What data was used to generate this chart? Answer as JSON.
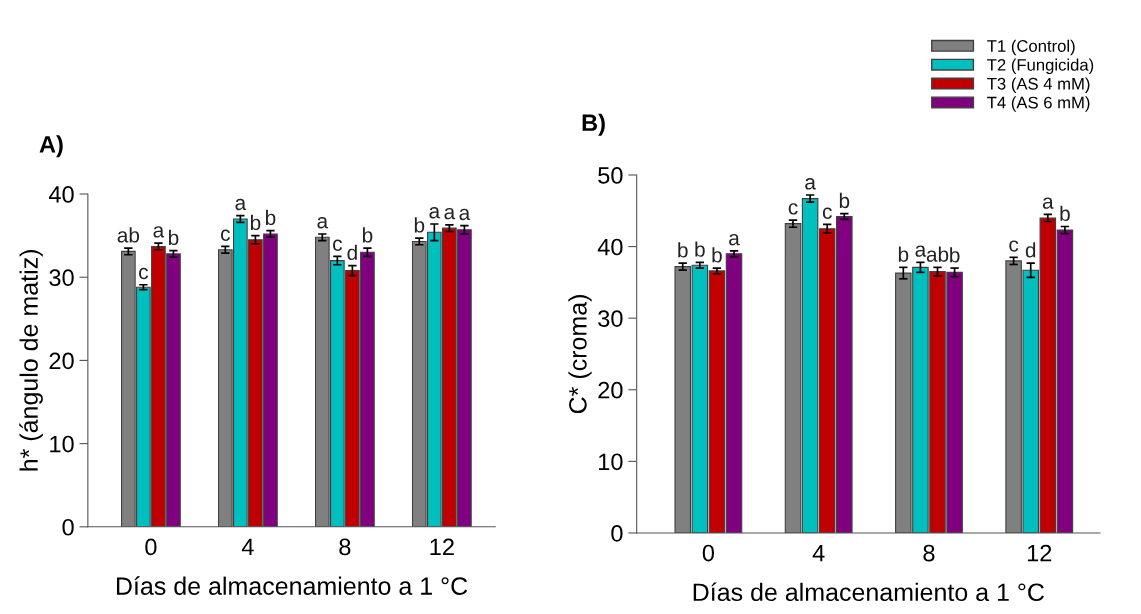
{
  "chart_data": [
    {
      "type": "bar",
      "title": "A)",
      "xlabel": "Días de almacenamiento a 1 °C",
      "ylabel": "h* (ángulo de matiz)",
      "categories": [
        "0",
        "4",
        "8",
        "12"
      ],
      "ylim": [
        0,
        40
      ],
      "yticks": [
        0,
        10,
        20,
        30,
        40
      ],
      "grid": false,
      "series": [
        {
          "color": "#808080",
          "values": [
            33.1,
            33.3,
            34.8,
            34.3
          ],
          "errors": [
            0.4,
            0.4,
            0.4,
            0.4
          ],
          "value_labels": [
            "ab",
            "c",
            "a",
            "b"
          ]
        },
        {
          "color": "#00bfbf",
          "values": [
            28.8,
            37.0,
            32.0,
            35.4
          ],
          "errors": [
            0.3,
            0.4,
            0.5,
            1.0
          ],
          "value_labels": [
            "c",
            "a",
            "c",
            "a"
          ]
        },
        {
          "color": "#c00000",
          "values": [
            33.7,
            34.5,
            30.8,
            35.9
          ],
          "errors": [
            0.4,
            0.5,
            0.6,
            0.4
          ],
          "value_labels": [
            "a",
            "b",
            "d",
            "a"
          ]
        },
        {
          "color": "#800080",
          "values": [
            32.8,
            35.2,
            33.0,
            35.7
          ],
          "errors": [
            0.4,
            0.4,
            0.5,
            0.5
          ],
          "value_labels": [
            "b",
            "b",
            "b",
            "a"
          ]
        }
      ]
    },
    {
      "type": "bar",
      "title": "B)",
      "xlabel": "Días de almacenamiento a 1 °C",
      "ylabel": "C* (croma)",
      "categories": [
        "0",
        "4",
        "8",
        "12"
      ],
      "ylim": [
        0,
        50
      ],
      "yticks": [
        0,
        10,
        20,
        30,
        40,
        50
      ],
      "grid": false,
      "legend": "top right",
      "series": [
        {
          "name": "T1 (Control)",
          "color": "#808080",
          "values": [
            37.2,
            43.2,
            36.3,
            38.0
          ],
          "errors": [
            0.5,
            0.5,
            0.8,
            0.5
          ],
          "value_labels": [
            "b",
            "c",
            "b",
            "c"
          ]
        },
        {
          "name": "T2 (Fungicida)",
          "color": "#00bfbf",
          "values": [
            37.4,
            46.7,
            37.1,
            36.7
          ],
          "errors": [
            0.4,
            0.5,
            0.7,
            1.0
          ],
          "value_labels": [
            "b",
            "a",
            "a",
            "d"
          ]
        },
        {
          "name": "T3 (AS 4 mM)",
          "color": "#c00000",
          "values": [
            36.6,
            42.5,
            36.5,
            44.0
          ],
          "errors": [
            0.4,
            0.6,
            0.6,
            0.5
          ],
          "value_labels": [
            "b",
            "c",
            "ab",
            "a"
          ]
        },
        {
          "name": "T4 (AS 6 mM)",
          "color": "#800080",
          "values": [
            39.0,
            44.2,
            36.4,
            42.3
          ],
          "errors": [
            0.4,
            0.4,
            0.6,
            0.5
          ],
          "value_labels": [
            "a",
            "b",
            "b",
            "b"
          ]
        }
      ]
    }
  ]
}
